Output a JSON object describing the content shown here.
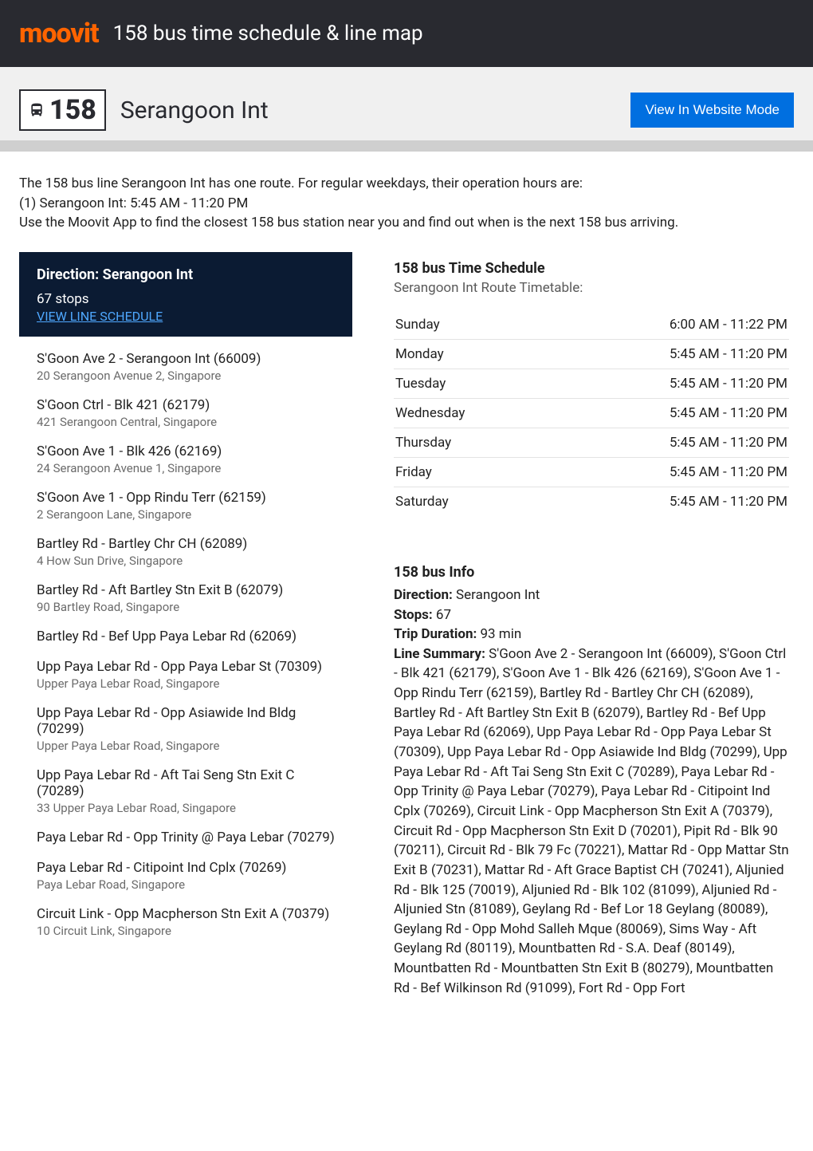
{
  "colors": {
    "brand": "#ff6400",
    "dark": "#292a30",
    "navy": "#0b1b33",
    "primary_btn": "#006fe0",
    "link": "#4fa8ff",
    "grey_bar": "#cfcfcf",
    "text": "#212121",
    "muted": "#6b6b6b",
    "border": "#e3e3e3"
  },
  "topbar": {
    "logo": "moovit",
    "title": "158 bus time schedule & line map"
  },
  "hero": {
    "route_number": "158",
    "destination": "Serangoon Int",
    "button_label": "View In Website Mode"
  },
  "intro": "The 158 bus line Serangoon Int has one route. For regular weekdays, their operation hours are:\n(1) Serangoon Int: 5:45 AM - 11:20 PM\nUse the Moovit App to find the closest 158 bus station near you and find out when is the next 158 bus arriving.",
  "direction": {
    "title": "Direction: Serangoon Int",
    "stops_count_label": "67 stops",
    "view_schedule_label": "VIEW LINE SCHEDULE"
  },
  "stops": [
    {
      "name": "S'Goon Ave 2 - Serangoon Int (66009)",
      "addr": "20 Serangoon Avenue 2, Singapore"
    },
    {
      "name": "S'Goon Ctrl - Blk 421 (62179)",
      "addr": "421 Serangoon Central, Singapore"
    },
    {
      "name": "S'Goon Ave 1 - Blk 426 (62169)",
      "addr": "24 Serangoon Avenue 1, Singapore"
    },
    {
      "name": "S'Goon Ave 1 - Opp Rindu Terr (62159)",
      "addr": "2 Serangoon Lane, Singapore"
    },
    {
      "name": "Bartley Rd - Bartley Chr CH (62089)",
      "addr": "4 How Sun Drive, Singapore"
    },
    {
      "name": "Bartley Rd - Aft Bartley Stn Exit B (62079)",
      "addr": "90 Bartley Road, Singapore"
    },
    {
      "name": "Bartley Rd - Bef Upp Paya Lebar Rd (62069)",
      "addr": ""
    },
    {
      "name": "Upp Paya Lebar Rd - Opp Paya Lebar St (70309)",
      "addr": "Upper Paya Lebar Road, Singapore"
    },
    {
      "name": "Upp Paya Lebar Rd - Opp Asiawide Ind Bldg (70299)",
      "addr": "Upper Paya Lebar Road, Singapore"
    },
    {
      "name": "Upp Paya Lebar Rd - Aft Tai Seng Stn Exit C (70289)",
      "addr": "33 Upper Paya Lebar Road, Singapore"
    },
    {
      "name": "Paya Lebar Rd - Opp Trinity @ Paya Lebar (70279)",
      "addr": ""
    },
    {
      "name": "Paya Lebar Rd - Citipoint Ind Cplx (70269)",
      "addr": "Paya Lebar Road, Singapore"
    },
    {
      "name": "Circuit Link - Opp Macpherson Stn Exit A (70379)",
      "addr": "10 Circuit Link, Singapore"
    }
  ],
  "schedule": {
    "title": "158 bus Time Schedule",
    "subtitle": "Serangoon Int Route Timetable:",
    "rows": [
      {
        "day": "Sunday",
        "hours": "6:00 AM - 11:22 PM"
      },
      {
        "day": "Monday",
        "hours": "5:45 AM - 11:20 PM"
      },
      {
        "day": "Tuesday",
        "hours": "5:45 AM - 11:20 PM"
      },
      {
        "day": "Wednesday",
        "hours": "5:45 AM - 11:20 PM"
      },
      {
        "day": "Thursday",
        "hours": "5:45 AM - 11:20 PM"
      },
      {
        "day": "Friday",
        "hours": "5:45 AM - 11:20 PM"
      },
      {
        "day": "Saturday",
        "hours": "5:45 AM - 11:20 PM"
      }
    ]
  },
  "info": {
    "title": "158 bus Info",
    "direction_label": "Direction:",
    "direction_value": "Serangoon Int",
    "stops_label": "Stops:",
    "stops_value": "67",
    "duration_label": "Trip Duration:",
    "duration_value": "93 min",
    "summary_label": "Line Summary:",
    "summary_value": "S'Goon Ave 2 - Serangoon Int (66009), S'Goon Ctrl - Blk 421 (62179), S'Goon Ave 1 - Blk 426 (62169), S'Goon Ave 1 - Opp Rindu Terr (62159), Bartley Rd - Bartley Chr CH (62089), Bartley Rd - Aft Bartley Stn Exit B (62079), Bartley Rd - Bef Upp Paya Lebar Rd (62069), Upp Paya Lebar Rd - Opp Paya Lebar St (70309), Upp Paya Lebar Rd - Opp Asiawide Ind Bldg (70299), Upp Paya Lebar Rd - Aft Tai Seng Stn Exit C (70289), Paya Lebar Rd - Opp Trinity @ Paya Lebar (70279), Paya Lebar Rd - Citipoint Ind Cplx (70269), Circuit Link - Opp Macpherson Stn Exit A (70379), Circuit Rd - Opp Macpherson Stn Exit D (70201), Pipit Rd - Blk 90 (70211), Circuit Rd - Blk 79 Fc (70221), Mattar Rd - Opp Mattar Stn Exit B (70231), Mattar Rd - Aft Grace Baptist CH (70241), Aljunied Rd - Blk 125 (70019), Aljunied Rd - Blk 102 (81099), Aljunied Rd - Aljunied Stn (81089), Geylang Rd - Bef Lor 18 Geylang (80089), Geylang Rd - Opp Mohd Salleh Mque (80069), Sims Way - Aft Geylang Rd (80119), Mountbatten Rd - S.A. Deaf (80149), Mountbatten Rd - Mountbatten Stn Exit B (80279), Mountbatten Rd - Bef Wilkinson Rd (91099), Fort Rd - Opp Fort"
  }
}
